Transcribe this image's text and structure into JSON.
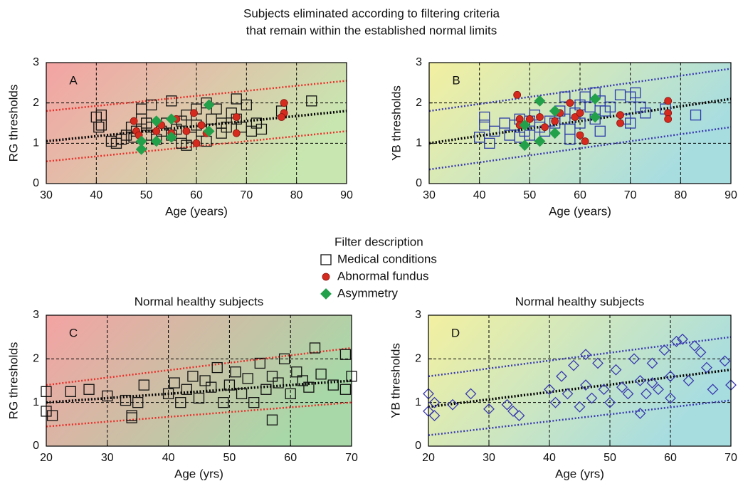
{
  "title": [
    "Subjects eliminated according to filtering criteria",
    "that remain within the established normal limits"
  ],
  "chart_data": [
    {
      "type": "scatter",
      "panel": "A",
      "xlabel": "Age (years)",
      "ylabel": "RG thresholds",
      "xlim": [
        30,
        90
      ],
      "ylim": [
        0,
        3
      ],
      "xticks": [
        30,
        40,
        50,
        60,
        70,
        80,
        90
      ],
      "yticks": [
        0,
        1,
        2,
        3
      ],
      "grid": true,
      "background": [
        "#f4a3a3",
        "#c8e6b0"
      ],
      "legend_title": "Filter description",
      "series": [
        {
          "name": "Medical conditions",
          "marker": "square",
          "filled": false,
          "color": "#111111",
          "x": [
            40,
            40.5,
            41,
            41,
            43,
            44,
            45,
            46,
            47,
            47.5,
            48,
            49,
            49,
            50,
            50,
            51,
            51,
            52,
            53,
            54,
            55,
            55,
            56,
            57,
            57,
            58,
            58,
            59,
            60,
            60,
            61,
            62,
            62,
            63,
            64,
            65,
            65,
            66,
            67,
            68,
            68,
            69,
            70,
            71,
            72,
            73,
            77,
            83
          ],
          "y": [
            1.65,
            1.4,
            1.7,
            1.45,
            1.05,
            1.0,
            1.1,
            1.2,
            1.4,
            1.15,
            1.3,
            1.6,
            1.85,
            1.5,
            1.2,
            1.95,
            1.4,
            1.1,
            1.3,
            1.5,
            2.05,
            1.2,
            1.35,
            1.0,
            1.55,
            0.95,
            1.7,
            1.15,
            1.85,
            1.45,
            1.3,
            2.0,
            1.05,
            1.6,
            1.85,
            1.25,
            1.5,
            1.4,
            1.75,
            2.1,
            1.6,
            1.4,
            1.95,
            1.3,
            1.5,
            1.35,
            1.8,
            2.05
          ]
        },
        {
          "name": "Abnormal fundus",
          "marker": "circle",
          "filled": true,
          "color": "#d62a1e",
          "x": [
            47.5,
            48,
            48.5,
            52,
            53,
            55,
            56,
            58,
            59.5,
            60,
            61,
            62,
            68,
            68,
            77.5,
            77.5,
            77
          ],
          "y": [
            1.55,
            1.3,
            1.2,
            1.3,
            1.45,
            1.25,
            1.6,
            1.3,
            1.75,
            1.0,
            1.45,
            1.25,
            1.25,
            1.65,
            2.0,
            1.75,
            1.65
          ]
        },
        {
          "name": "Asymmetry",
          "marker": "diamond",
          "filled": true,
          "color": "#22a04a",
          "x": [
            49,
            49,
            52,
            52,
            55,
            55,
            62.5,
            62.5
          ],
          "y": [
            1.05,
            0.85,
            1.05,
            1.55,
            1.6,
            1.15,
            1.95,
            1.3
          ]
        }
      ],
      "lines": [
        {
          "color": "#e8302a",
          "x": [
            30,
            90
          ],
          "y": [
            1.8,
            2.55
          ]
        },
        {
          "color": "#e8302a",
          "x": [
            30,
            90
          ],
          "y": [
            0.55,
            1.3
          ]
        },
        {
          "color": "#000000",
          "x": [
            30,
            90
          ],
          "y": [
            1.05,
            1.8
          ]
        }
      ]
    },
    {
      "type": "scatter",
      "panel": "B",
      "xlabel": "Age (years)",
      "ylabel": "YB thresholds",
      "xlim": [
        30,
        90
      ],
      "ylim": [
        0,
        3
      ],
      "xticks": [
        30,
        40,
        50,
        60,
        70,
        80,
        90
      ],
      "yticks": [
        0,
        1,
        2,
        3
      ],
      "grid": true,
      "background": [
        "#f3f0a0",
        "#a8dde0"
      ],
      "series": [
        {
          "marker": "square",
          "filled": false,
          "color": "#2b3aa8",
          "x": [
            40,
            41,
            41,
            42,
            43,
            45,
            46,
            47,
            48,
            48,
            49,
            50,
            50,
            51,
            52,
            53,
            54,
            55,
            56,
            57,
            57,
            58,
            58,
            59,
            60,
            60,
            61,
            62,
            63,
            63,
            64,
            64,
            65,
            66,
            68,
            69,
            70,
            70,
            71,
            72,
            73,
            77,
            83
          ],
          "y": [
            1.15,
            1.65,
            1.45,
            1.0,
            1.3,
            1.5,
            1.2,
            1.45,
            1.6,
            1.15,
            1.3,
            1.55,
            1.2,
            1.7,
            1.4,
            1.3,
            1.55,
            1.5,
            1.8,
            2.15,
            1.6,
            1.35,
            1.1,
            1.75,
            1.95,
            1.5,
            2.15,
            1.9,
            2.25,
            1.6,
            2.05,
            1.3,
            1.8,
            1.9,
            2.2,
            1.6,
            2.15,
            1.5,
            2.25,
            1.9,
            1.75,
            1.85,
            1.7
          ]
        },
        {
          "marker": "circle",
          "filled": true,
          "color": "#d62a1e",
          "x": [
            47.5,
            48,
            48,
            50,
            52,
            53,
            55,
            56,
            58,
            59,
            60,
            60,
            61,
            68,
            68,
            77.5,
            77.5,
            77.5
          ],
          "y": [
            2.2,
            1.6,
            1.45,
            1.6,
            1.65,
            1.4,
            1.55,
            1.75,
            2.0,
            1.65,
            1.75,
            1.2,
            1.05,
            1.5,
            1.7,
            2.05,
            1.75,
            1.6
          ]
        },
        {
          "marker": "diamond",
          "filled": true,
          "color": "#22a04a",
          "x": [
            49,
            49,
            52,
            52,
            55,
            55,
            63,
            63
          ],
          "y": [
            1.45,
            0.95,
            2.05,
            1.05,
            1.8,
            1.25,
            2.1,
            1.65
          ]
        }
      ],
      "lines": [
        {
          "color": "#3a3ab0",
          "x": [
            30,
            90
          ],
          "y": [
            1.8,
            2.85
          ]
        },
        {
          "color": "#3a3ab0",
          "x": [
            30,
            90
          ],
          "y": [
            0.35,
            1.4
          ]
        },
        {
          "color": "#000000",
          "x": [
            30,
            90
          ],
          "y": [
            1.0,
            2.1
          ]
        }
      ]
    },
    {
      "type": "scatter",
      "panel": "C",
      "title": "Normal healthy subjects",
      "xlabel": "Age (yrs)",
      "ylabel": "RG thresholds",
      "xlim": [
        20,
        70
      ],
      "ylim": [
        0,
        3
      ],
      "xticks": [
        20,
        30,
        40,
        50,
        60,
        70
      ],
      "yticks": [
        0,
        1,
        2,
        3
      ],
      "grid": true,
      "background": [
        "#f4a3a3",
        "#a8d8a8"
      ],
      "series": [
        {
          "marker": "square",
          "filled": false,
          "color": "#111111",
          "x": [
            20,
            20,
            21,
            24,
            27,
            30,
            33,
            34,
            34,
            35,
            36,
            40,
            41,
            42,
            43,
            44,
            45,
            46,
            47,
            48,
            49,
            50,
            51,
            52,
            53,
            54,
            55,
            56,
            57,
            57,
            58,
            59,
            60,
            61,
            62,
            63,
            64,
            65,
            67,
            69,
            69,
            70
          ],
          "y": [
            1.25,
            0.8,
            0.7,
            1.25,
            1.3,
            1.15,
            1.05,
            0.7,
            0.65,
            1.0,
            1.4,
            1.2,
            1.45,
            1.0,
            1.3,
            1.6,
            1.1,
            1.5,
            1.35,
            1.8,
            1.0,
            1.4,
            1.7,
            1.2,
            1.55,
            1.0,
            1.9,
            1.3,
            0.6,
            1.6,
            1.45,
            2.0,
            1.2,
            1.7,
            1.5,
            1.35,
            2.25,
            1.65,
            1.4,
            1.3,
            2.1,
            1.6
          ]
        }
      ],
      "lines": [
        {
          "color": "#e8302a",
          "x": [
            20,
            70
          ],
          "y": [
            1.4,
            2.25
          ]
        },
        {
          "color": "#e8302a",
          "x": [
            20,
            70
          ],
          "y": [
            0.45,
            1.0
          ]
        },
        {
          "color": "#000000",
          "x": [
            20,
            70
          ],
          "y": [
            1.0,
            1.5
          ]
        }
      ]
    },
    {
      "type": "scatter",
      "panel": "D",
      "title": "Normal healthy subjects",
      "xlabel": "Age (yrs)",
      "ylabel": "YB thresholds",
      "xlim": [
        20,
        70
      ],
      "ylim": [
        0,
        3
      ],
      "xticks": [
        20,
        30,
        40,
        50,
        60,
        70
      ],
      "yticks": [
        0,
        1,
        2,
        3
      ],
      "grid": true,
      "background": [
        "#f3f0a0",
        "#a8dde0"
      ],
      "series": [
        {
          "marker": "diamond",
          "filled": false,
          "color": "#3a3ab0",
          "x": [
            20,
            20,
            21,
            21,
            24,
            27,
            30,
            33,
            34,
            35,
            40,
            41,
            42,
            43,
            44,
            45,
            46,
            46,
            47,
            48,
            49,
            50,
            51,
            52,
            53,
            54,
            55,
            55,
            56,
            57,
            57,
            58,
            59,
            60,
            60,
            61,
            62,
            63,
            64,
            65,
            66,
            67,
            69,
            70
          ],
          "y": [
            1.2,
            0.8,
            1.0,
            0.7,
            0.95,
            1.2,
            0.85,
            0.95,
            0.8,
            0.7,
            1.3,
            1.0,
            1.6,
            1.2,
            1.85,
            0.9,
            2.1,
            1.4,
            1.1,
            1.9,
            1.3,
            1.0,
            1.75,
            1.35,
            1.2,
            2.0,
            1.5,
            0.75,
            1.2,
            1.9,
            1.45,
            1.3,
            2.2,
            1.6,
            1.1,
            2.4,
            2.45,
            1.5,
            2.3,
            2.15,
            1.8,
            1.3,
            1.95,
            1.4
          ]
        }
      ],
      "lines": [
        {
          "color": "#3a3ab0",
          "x": [
            20,
            70
          ],
          "y": [
            1.6,
            2.5
          ]
        },
        {
          "color": "#3a3ab0",
          "x": [
            20,
            70
          ],
          "y": [
            0.25,
            1.05
          ]
        },
        {
          "color": "#000000",
          "x": [
            20,
            70
          ],
          "y": [
            0.9,
            1.75
          ]
        }
      ]
    }
  ]
}
